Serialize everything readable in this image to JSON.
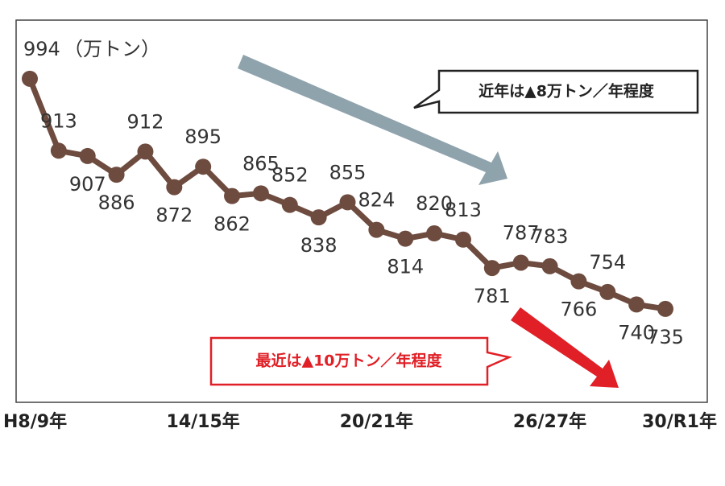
{
  "chart_data": {
    "type": "line",
    "unit": "（万トン）",
    "categories": [
      "H8/9年",
      null,
      null,
      null,
      null,
      null,
      "14/15年",
      null,
      null,
      null,
      null,
      null,
      "20/21年",
      null,
      null,
      null,
      null,
      null,
      "26/27年",
      null,
      null,
      null,
      "30/R1年"
    ],
    "series": [
      {
        "color": "#6e4b3f",
        "values": [
          994,
          913,
          907,
          886,
          912,
          872,
          895,
          862,
          865,
          852,
          838,
          855,
          824,
          814,
          820,
          813,
          781,
          787,
          783,
          766,
          754,
          740,
          735
        ]
      }
    ],
    "ylim": [
      600,
      1050
    ],
    "annotations": [
      "近年は▲8万トン／年程度",
      "最近は▲10万トン／年程度"
    ]
  }
}
